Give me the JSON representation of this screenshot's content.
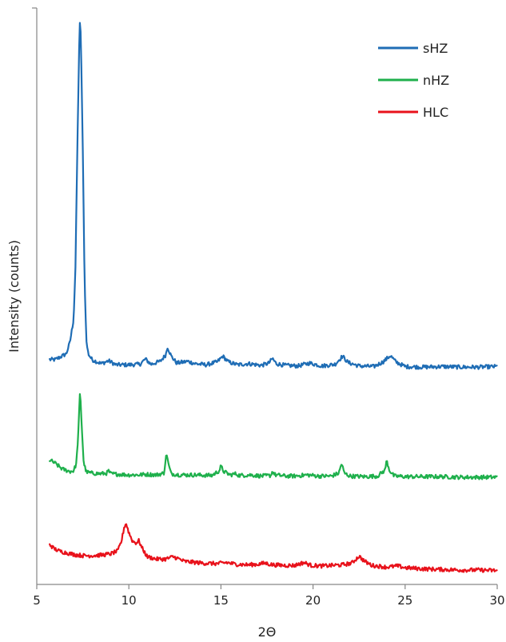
{
  "chart_data": {
    "type": "line",
    "title": "",
    "xlabel": "2Θ",
    "ylabel": "Intensity (counts)",
    "xlim": [
      5,
      30
    ],
    "x_ticks": [
      5,
      10,
      15,
      20,
      25,
      30
    ],
    "y_scale": "arbitrary (stacked, offset traces)",
    "y_tick_labels": false,
    "grid": false,
    "legend_position": "top-right",
    "colors": {
      "sHZ": "#1f6db5",
      "nHZ": "#1fb04c",
      "HLC": "#e8121b"
    },
    "series": [
      {
        "name": "sHZ",
        "color": "#1f6db5",
        "points": [
          [
            5.7,
            0.39
          ],
          [
            6.0,
            0.39
          ],
          [
            6.3,
            0.395
          ],
          [
            6.6,
            0.4
          ],
          [
            6.8,
            0.42
          ],
          [
            7.0,
            0.46
          ],
          [
            7.1,
            0.55
          ],
          [
            7.2,
            0.75
          ],
          [
            7.3,
            0.93
          ],
          [
            7.35,
            0.982
          ],
          [
            7.4,
            0.94
          ],
          [
            7.5,
            0.75
          ],
          [
            7.6,
            0.52
          ],
          [
            7.7,
            0.42
          ],
          [
            7.8,
            0.4
          ],
          [
            8.0,
            0.39
          ],
          [
            8.5,
            0.383
          ],
          [
            8.9,
            0.388
          ],
          [
            9.3,
            0.381
          ],
          [
            10.0,
            0.381
          ],
          [
            10.6,
            0.382
          ],
          [
            10.9,
            0.391
          ],
          [
            11.2,
            0.382
          ],
          [
            11.7,
            0.387
          ],
          [
            12.0,
            0.398
          ],
          [
            12.1,
            0.412
          ],
          [
            12.3,
            0.396
          ],
          [
            12.6,
            0.384
          ],
          [
            13.2,
            0.387
          ],
          [
            13.6,
            0.383
          ],
          [
            14.2,
            0.381
          ],
          [
            14.8,
            0.386
          ],
          [
            15.1,
            0.396
          ],
          [
            15.4,
            0.386
          ],
          [
            15.9,
            0.381
          ],
          [
            16.5,
            0.383
          ],
          [
            17.2,
            0.38
          ],
          [
            17.6,
            0.384
          ],
          [
            17.8,
            0.392
          ],
          [
            18.0,
            0.383
          ],
          [
            18.5,
            0.38
          ],
          [
            19.2,
            0.379
          ],
          [
            19.8,
            0.384
          ],
          [
            20.5,
            0.379
          ],
          [
            21.2,
            0.382
          ],
          [
            21.6,
            0.396
          ],
          [
            21.9,
            0.385
          ],
          [
            22.5,
            0.379
          ],
          [
            23.3,
            0.378
          ],
          [
            23.8,
            0.386
          ],
          [
            24.2,
            0.397
          ],
          [
            24.5,
            0.386
          ],
          [
            25.0,
            0.378
          ],
          [
            26.0,
            0.377
          ],
          [
            27.0,
            0.378
          ],
          [
            28.0,
            0.377
          ],
          [
            29.0,
            0.377
          ],
          [
            30.0,
            0.378
          ]
        ]
      },
      {
        "name": "nHZ",
        "color": "#1fb04c",
        "points": [
          [
            5.7,
            0.216
          ],
          [
            6.0,
            0.21
          ],
          [
            6.4,
            0.2
          ],
          [
            6.8,
            0.196
          ],
          [
            7.0,
            0.197
          ],
          [
            7.15,
            0.21
          ],
          [
            7.25,
            0.26
          ],
          [
            7.35,
            0.336
          ],
          [
            7.45,
            0.27
          ],
          [
            7.55,
            0.21
          ],
          [
            7.7,
            0.195
          ],
          [
            8.0,
            0.193
          ],
          [
            8.5,
            0.192
          ],
          [
            8.8,
            0.193
          ],
          [
            8.9,
            0.197
          ],
          [
            9.0,
            0.192
          ],
          [
            9.5,
            0.191
          ],
          [
            10.0,
            0.19
          ],
          [
            10.5,
            0.19
          ],
          [
            11.0,
            0.191
          ],
          [
            11.5,
            0.19
          ],
          [
            11.9,
            0.193
          ],
          [
            12.05,
            0.228
          ],
          [
            12.15,
            0.208
          ],
          [
            12.3,
            0.192
          ],
          [
            12.8,
            0.19
          ],
          [
            13.5,
            0.19
          ],
          [
            14.5,
            0.189
          ],
          [
            14.9,
            0.197
          ],
          [
            15.0,
            0.205
          ],
          [
            15.15,
            0.196
          ],
          [
            15.5,
            0.19
          ],
          [
            15.8,
            0.192
          ],
          [
            16.0,
            0.189
          ],
          [
            16.6,
            0.19
          ],
          [
            17.2,
            0.188
          ],
          [
            17.7,
            0.189
          ],
          [
            17.8,
            0.196
          ],
          [
            17.95,
            0.19
          ],
          [
            18.5,
            0.188
          ],
          [
            19.0,
            0.188
          ],
          [
            19.7,
            0.19
          ],
          [
            20.3,
            0.188
          ],
          [
            21.0,
            0.188
          ],
          [
            21.4,
            0.193
          ],
          [
            21.55,
            0.21
          ],
          [
            21.7,
            0.193
          ],
          [
            22.0,
            0.188
          ],
          [
            22.8,
            0.187
          ],
          [
            23.5,
            0.188
          ],
          [
            23.9,
            0.198
          ],
          [
            24.0,
            0.215
          ],
          [
            24.15,
            0.198
          ],
          [
            24.4,
            0.188
          ],
          [
            25.0,
            0.187
          ],
          [
            26.0,
            0.187
          ],
          [
            27.0,
            0.187
          ],
          [
            28.0,
            0.186
          ],
          [
            29.0,
            0.186
          ],
          [
            30.0,
            0.186
          ]
        ]
      },
      {
        "name": "HLC",
        "color": "#e8121b",
        "points": [
          [
            5.7,
            0.07
          ],
          [
            5.9,
            0.063
          ],
          [
            6.2,
            0.058
          ],
          [
            6.6,
            0.055
          ],
          [
            7.0,
            0.052
          ],
          [
            7.5,
            0.05
          ],
          [
            8.0,
            0.05
          ],
          [
            8.5,
            0.051
          ],
          [
            9.0,
            0.053
          ],
          [
            9.4,
            0.058
          ],
          [
            9.6,
            0.075
          ],
          [
            9.75,
            0.1
          ],
          [
            9.85,
            0.106
          ],
          [
            10.0,
            0.09
          ],
          [
            10.2,
            0.075
          ],
          [
            10.4,
            0.072
          ],
          [
            10.55,
            0.076
          ],
          [
            10.7,
            0.064
          ],
          [
            11.0,
            0.048
          ],
          [
            11.5,
            0.044
          ],
          [
            12.0,
            0.044
          ],
          [
            12.4,
            0.048
          ],
          [
            12.6,
            0.046
          ],
          [
            13.0,
            0.04
          ],
          [
            14.0,
            0.037
          ],
          [
            14.8,
            0.036
          ],
          [
            15.3,
            0.038
          ],
          [
            15.8,
            0.035
          ],
          [
            16.5,
            0.034
          ],
          [
            17.0,
            0.035
          ],
          [
            17.4,
            0.037
          ],
          [
            17.8,
            0.034
          ],
          [
            18.5,
            0.033
          ],
          [
            19.0,
            0.033
          ],
          [
            19.5,
            0.038
          ],
          [
            19.9,
            0.033
          ],
          [
            20.5,
            0.032
          ],
          [
            21.0,
            0.033
          ],
          [
            21.6,
            0.034
          ],
          [
            22.1,
            0.037
          ],
          [
            22.5,
            0.049
          ],
          [
            22.8,
            0.04
          ],
          [
            23.2,
            0.033
          ],
          [
            24.0,
            0.03
          ],
          [
            24.6,
            0.032
          ],
          [
            25.0,
            0.029
          ],
          [
            26.0,
            0.027
          ],
          [
            27.0,
            0.026
          ],
          [
            28.0,
            0.025
          ],
          [
            29.0,
            0.025
          ],
          [
            30.0,
            0.024
          ]
        ]
      }
    ]
  }
}
